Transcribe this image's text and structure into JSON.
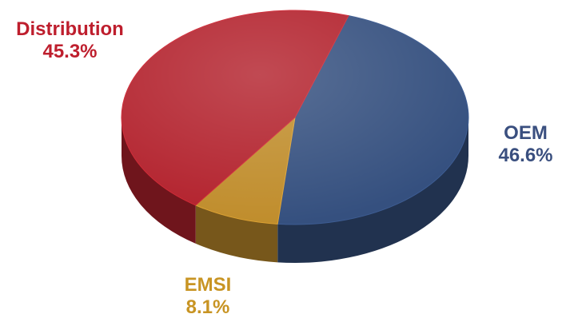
{
  "chart_data": {
    "type": "pie",
    "style": "3d",
    "title": "",
    "slices": [
      {
        "name": "OEM",
        "label": "46.6%",
        "value": 46.6,
        "color": "#35507f"
      },
      {
        "name": "EMSI",
        "label": "8.1%",
        "value": 8.1,
        "color": "#c08d2c"
      },
      {
        "name": "Distribution",
        "label": "45.3%",
        "value": 45.3,
        "color": "#b3222d"
      }
    ]
  }
}
